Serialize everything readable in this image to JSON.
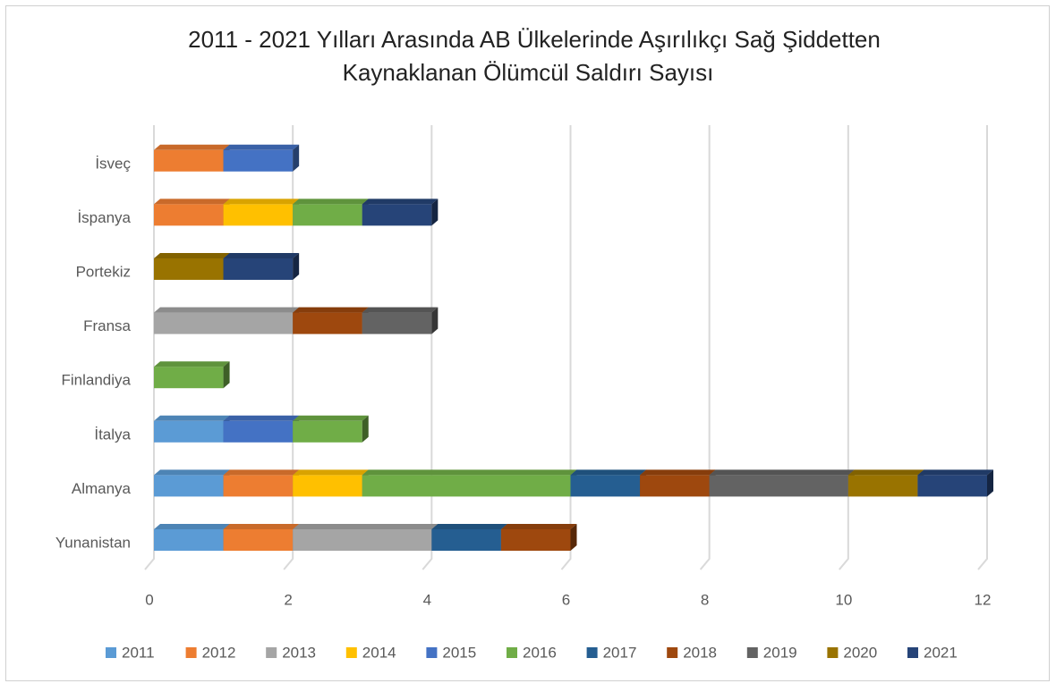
{
  "chart_data": {
    "type": "bar3d_stacked_horizontal",
    "title": [
      "2011 - 2021 Yılları Arasında AB Ülkelerinde Aşırılıkçı Sağ Şiddetten",
      "Kaynaklanan Ölümcül Saldırı Sayısı"
    ],
    "categories": [
      "Yunanistan",
      "Almanya",
      "İtalya",
      "Finlandiya",
      "Fransa",
      "Portekiz",
      "İspanya",
      "İsveç"
    ],
    "series": [
      {
        "name": "2011",
        "color": "#5b9bd5",
        "values": [
          1,
          1,
          1,
          0,
          0,
          0,
          0,
          0
        ]
      },
      {
        "name": "2012",
        "color": "#ed7d31",
        "values": [
          1,
          1,
          0,
          0,
          0,
          0,
          1,
          1
        ]
      },
      {
        "name": "2013",
        "color": "#a5a5a5",
        "values": [
          2,
          0,
          0,
          0,
          2,
          0,
          0,
          0
        ]
      },
      {
        "name": "2014",
        "color": "#ffc000",
        "values": [
          0,
          1,
          0,
          0,
          0,
          0,
          1,
          0
        ]
      },
      {
        "name": "2015",
        "color": "#4472c4",
        "values": [
          0,
          0,
          1,
          0,
          0,
          0,
          0,
          1
        ]
      },
      {
        "name": "2016",
        "color": "#70ad47",
        "values": [
          0,
          3,
          1,
          1,
          0,
          0,
          1,
          0
        ]
      },
      {
        "name": "2017",
        "color": "#255e91",
        "values": [
          1,
          1,
          0,
          0,
          0,
          0,
          0,
          0
        ]
      },
      {
        "name": "2018",
        "color": "#9e480e",
        "values": [
          1,
          1,
          0,
          0,
          1,
          0,
          0,
          0
        ]
      },
      {
        "name": "2019",
        "color": "#636363",
        "values": [
          0,
          2,
          0,
          0,
          1,
          0,
          0,
          0
        ]
      },
      {
        "name": "2020",
        "color": "#997300",
        "values": [
          0,
          1,
          0,
          0,
          0,
          1,
          0,
          0
        ]
      },
      {
        "name": "2021",
        "color": "#264478",
        "values": [
          0,
          1,
          0,
          0,
          0,
          1,
          1,
          0
        ]
      }
    ],
    "xlim": [
      0,
      12
    ],
    "xticks": [
      0,
      2,
      4,
      6,
      8,
      10,
      12
    ],
    "grid": true,
    "legend": "bottom"
  }
}
